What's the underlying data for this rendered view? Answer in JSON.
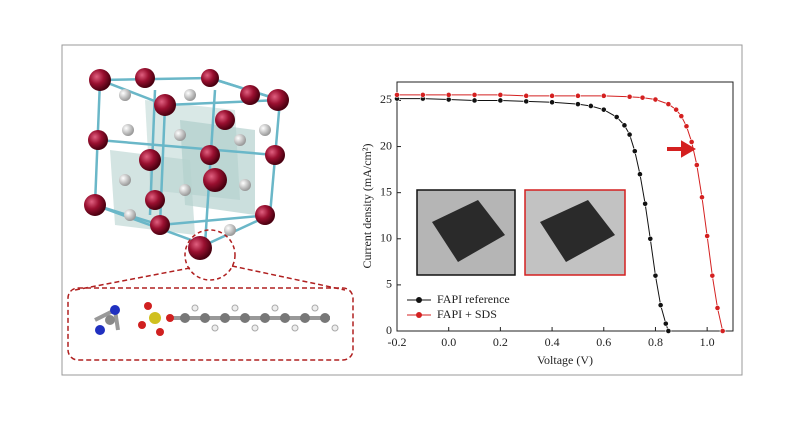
{
  "chart_data": {
    "type": "line",
    "xlabel": "Voltage (V)",
    "ylabel": "Current density (mA/cm²)",
    "xlim": [
      -0.2,
      1.1
    ],
    "xticks": [
      {
        "value": -0.2,
        "label": "-0.2"
      },
      {
        "value": 0,
        "label": "0.0"
      },
      {
        "value": 0.2,
        "label": "0.2"
      },
      {
        "value": 0.4,
        "label": "0.4"
      },
      {
        "value": 0.6,
        "label": "0.6"
      },
      {
        "value": 0.8,
        "label": "0.8"
      },
      {
        "value": 1,
        "label": "1.0"
      }
    ],
    "ylim": [
      0,
      27
    ],
    "yticks": [
      0,
      5,
      10,
      15,
      20,
      25
    ],
    "legend": "lower left",
    "series": [
      {
        "name": "FAPI reference",
        "color": "#111111",
        "x": [
          -0.2,
          -0.1,
          0,
          0.1,
          0.2,
          0.3,
          0.4,
          0.5,
          0.55,
          0.6,
          0.65,
          0.68,
          0.7,
          0.72,
          0.74,
          0.76,
          0.78,
          0.8,
          0.82,
          0.84,
          0.85
        ],
        "values": [
          25.2,
          25.2,
          25.1,
          25.0,
          25.0,
          24.9,
          24.8,
          24.6,
          24.4,
          24.0,
          23.2,
          22.3,
          21.3,
          19.5,
          17,
          13.8,
          10,
          6,
          2.8,
          0.8,
          0
        ]
      },
      {
        "name": "FAPI + SDS",
        "color": "#d42020",
        "x": [
          -0.2,
          -0.1,
          0,
          0.1,
          0.2,
          0.3,
          0.4,
          0.5,
          0.6,
          0.7,
          0.75,
          0.8,
          0.85,
          0.88,
          0.9,
          0.92,
          0.94,
          0.96,
          0.98,
          1.0,
          1.02,
          1.04,
          1.06
        ],
        "values": [
          25.6,
          25.6,
          25.6,
          25.6,
          25.6,
          25.5,
          25.5,
          25.5,
          25.5,
          25.4,
          25.3,
          25.1,
          24.6,
          24.0,
          23.3,
          22.2,
          20.5,
          18,
          14.5,
          10.3,
          6,
          2.5,
          0
        ]
      }
    ]
  }
}
